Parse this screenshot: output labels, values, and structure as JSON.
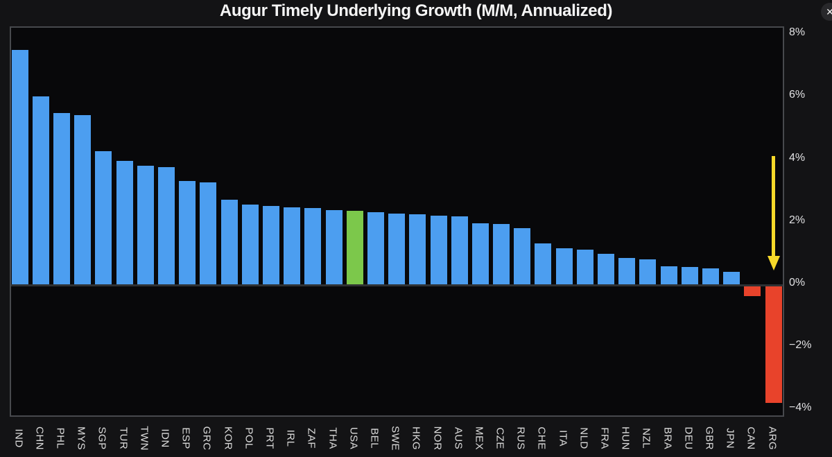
{
  "window": {
    "close_glyph": "✕"
  },
  "chart_data": {
    "type": "bar",
    "title": "Augur Timely Underlying Growth (M/M, Annualized)",
    "categories": [
      "IND",
      "CHN",
      "PHL",
      "MYS",
      "SGP",
      "TUR",
      "TWN",
      "IDN",
      "ESP",
      "GRC",
      "KOR",
      "POL",
      "PRT",
      "IRL",
      "ZAF",
      "THA",
      "USA",
      "BEL",
      "SWE",
      "HKG",
      "NOR",
      "AUS",
      "MEX",
      "CZE",
      "RUS",
      "CHE",
      "ITA",
      "NLD",
      "FRA",
      "HUN",
      "NZL",
      "BRA",
      "DEU",
      "GBR",
      "JPN",
      "CAN",
      "ARG"
    ],
    "values": [
      7.5,
      6.0,
      5.48,
      5.42,
      4.26,
      3.95,
      3.8,
      3.74,
      3.3,
      3.26,
      2.7,
      2.55,
      2.5,
      2.47,
      2.43,
      2.38,
      2.35,
      2.3,
      2.27,
      2.25,
      2.2,
      2.17,
      1.95,
      1.92,
      1.8,
      1.31,
      1.16,
      1.1,
      0.98,
      0.85,
      0.8,
      0.58,
      0.55,
      0.52,
      0.4,
      -0.3,
      -3.72
    ],
    "unit": "%",
    "bar_color_default": "#4C9EF0",
    "bar_color_overrides": {
      "USA": "#7CC84B",
      "CAN": "#E8432B",
      "ARG": "#E8432B"
    },
    "y_ticks": [
      {
        "label": "8%",
        "value": 8
      },
      {
        "label": "6%",
        "value": 6
      },
      {
        "label": "4%",
        "value": 4
      },
      {
        "label": "2%",
        "value": 2
      },
      {
        "label": "0%",
        "value": 0
      },
      {
        "label": "−2%",
        "value": -2
      },
      {
        "label": "−4%",
        "value": -4
      }
    ],
    "ylim": [
      -4.3,
      8.2
    ],
    "grid": false,
    "legend": false,
    "annotation": {
      "type": "down-arrow",
      "target_category": "ARG",
      "color": "#F6D829"
    },
    "layout_hints": {
      "axis_labels_side": "right",
      "x_labels_rotation_deg": 90,
      "background": "dark"
    }
  }
}
